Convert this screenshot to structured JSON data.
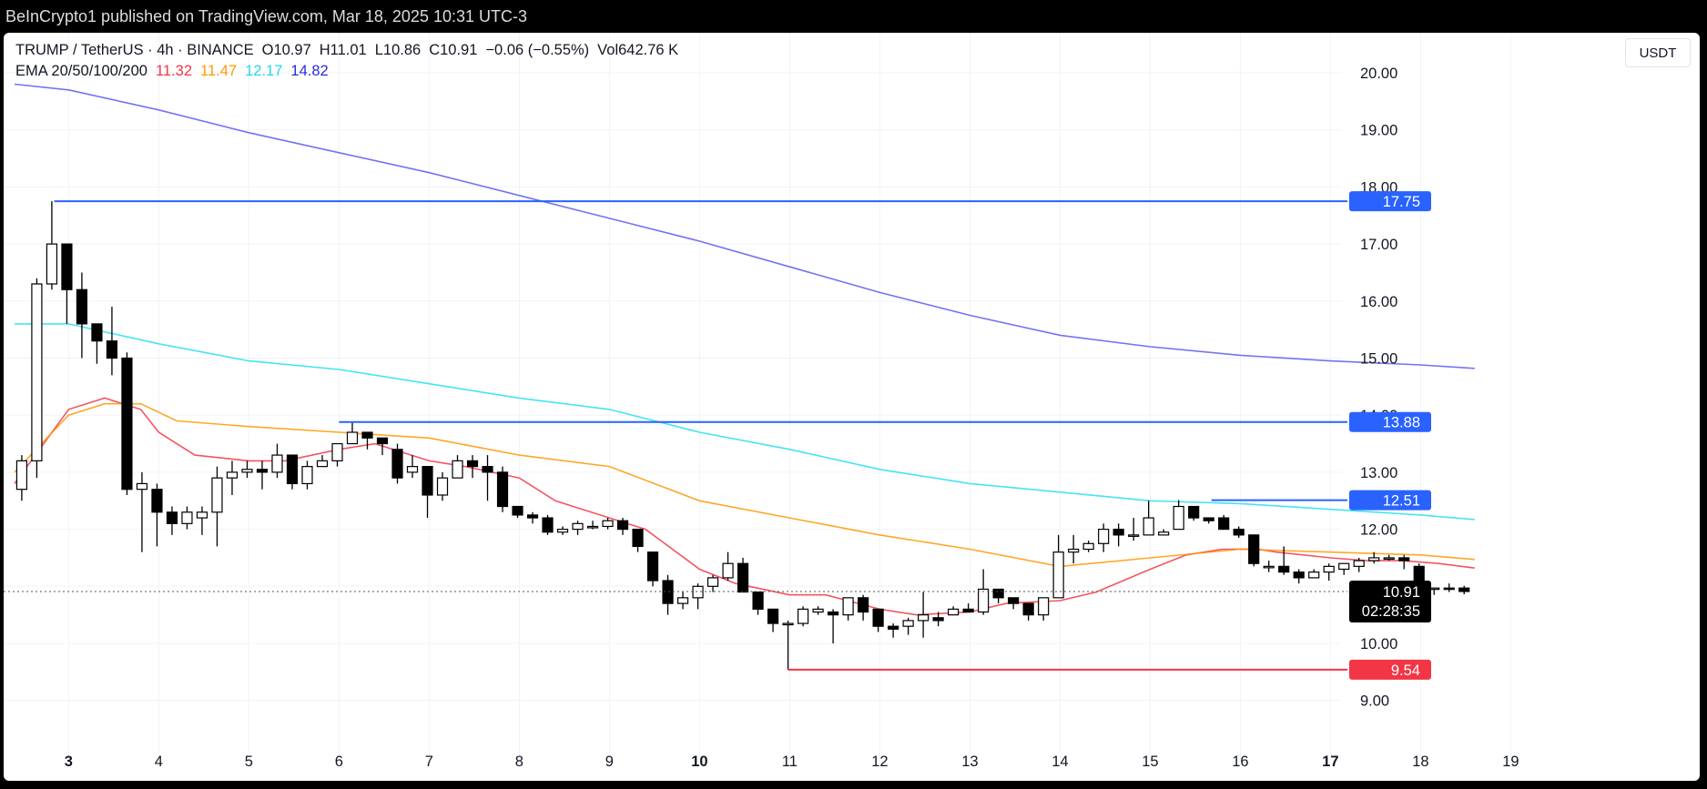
{
  "header": {
    "publisher_line": "BeInCrypto1 published on TradingView.com, Mar 18, 2025 10:31 UTC-3"
  },
  "legend": {
    "symbol_line": "TRUMP / TetherUS · 4h · BINANCE",
    "open": "O10.97",
    "high": "H11.01",
    "low": "L10.86",
    "close": "C10.91",
    "change": "−0.06 (−0.55%)",
    "volume": "Vol642.76 K",
    "ema_title": "EMA 20/50/100/200",
    "ema_values": [
      {
        "text": "11.32",
        "color": "#f23645"
      },
      {
        "text": "11.47",
        "color": "#ff9800"
      },
      {
        "text": "12.17",
        "color": "#22e0f0"
      },
      {
        "text": "14.82",
        "color": "#2a2ae0"
      }
    ]
  },
  "currency_button": "USDT",
  "price_badge": {
    "price": "10.91",
    "countdown": "02:28:35"
  },
  "chart_data": {
    "type": "candlestick",
    "timeframe": "4h",
    "ylim": [
      8.6,
      20.6
    ],
    "y_ticks": [
      "9.00",
      "10.00",
      "11.00",
      "12.00",
      "13.00",
      "14.00",
      "15.00",
      "16.00",
      "17.00",
      "18.00",
      "19.00",
      "20.00"
    ],
    "x_ticks": [
      {
        "label": "3",
        "bold": true,
        "x": 2.6
      },
      {
        "label": "4",
        "bold": false,
        "x": 3.6
      },
      {
        "label": "5",
        "bold": false,
        "x": 4.6
      },
      {
        "label": "6",
        "bold": false,
        "x": 5.6
      },
      {
        "label": "7",
        "bold": false,
        "x": 6.6
      },
      {
        "label": "8",
        "bold": false,
        "x": 7.6
      },
      {
        "label": "9",
        "bold": false,
        "x": 8.6
      },
      {
        "label": "10",
        "bold": true,
        "x": 9.6
      },
      {
        "label": "11",
        "bold": false,
        "x": 10.6
      },
      {
        "label": "12",
        "bold": false,
        "x": 11.6
      },
      {
        "label": "13",
        "bold": false,
        "x": 12.6
      },
      {
        "label": "14",
        "bold": false,
        "x": 13.6
      },
      {
        "label": "15",
        "bold": false,
        "x": 14.6
      },
      {
        "label": "16",
        "bold": false,
        "x": 15.6
      },
      {
        "label": "17",
        "bold": true,
        "x": 16.6
      },
      {
        "label": "18",
        "bold": false,
        "x": 17.6
      },
      {
        "label": "19",
        "bold": false,
        "x": 18.6
      }
    ],
    "xlim": [
      2.0,
      19.95
    ],
    "candle_start_x": 2.08,
    "candle_step": 0.1667,
    "candles": [
      [
        12.7,
        13.2,
        12.5,
        13.3
      ],
      [
        13.2,
        16.3,
        12.9,
        16.4
      ],
      [
        16.3,
        17.0,
        16.2,
        17.75
      ],
      [
        17.0,
        16.2,
        15.6,
        17.0
      ],
      [
        16.2,
        15.6,
        15.0,
        16.5
      ],
      [
        15.6,
        15.3,
        14.9,
        15.6
      ],
      [
        15.3,
        15.0,
        14.7,
        15.9
      ],
      [
        15.0,
        12.7,
        12.6,
        15.1
      ],
      [
        12.7,
        12.8,
        11.6,
        13.0
      ],
      [
        12.7,
        12.3,
        11.7,
        12.8
      ],
      [
        12.3,
        12.1,
        11.9,
        12.4
      ],
      [
        12.1,
        12.3,
        12.0,
        12.4
      ],
      [
        12.2,
        12.3,
        11.9,
        12.4
      ],
      [
        12.3,
        12.9,
        11.7,
        13.1
      ],
      [
        12.9,
        13.0,
        12.6,
        13.2
      ],
      [
        13.0,
        13.05,
        12.9,
        13.2
      ],
      [
        13.05,
        13.0,
        12.7,
        13.2
      ],
      [
        13.0,
        13.3,
        12.9,
        13.5
      ],
      [
        13.3,
        12.8,
        12.7,
        13.3
      ],
      [
        12.8,
        13.1,
        12.7,
        13.2
      ],
      [
        13.1,
        13.2,
        13.1,
        13.3
      ],
      [
        13.2,
        13.5,
        13.1,
        13.5
      ],
      [
        13.5,
        13.7,
        13.5,
        13.88
      ],
      [
        13.7,
        13.6,
        13.4,
        13.7
      ],
      [
        13.6,
        13.5,
        13.3,
        13.6
      ],
      [
        13.4,
        12.9,
        12.8,
        13.5
      ],
      [
        13.0,
        13.1,
        12.9,
        13.3
      ],
      [
        13.1,
        12.6,
        12.2,
        13.1
      ],
      [
        12.6,
        12.9,
        12.5,
        13.0
      ],
      [
        12.9,
        13.2,
        12.9,
        13.3
      ],
      [
        13.2,
        13.1,
        12.9,
        13.3
      ],
      [
        13.1,
        13.0,
        12.5,
        13.3
      ],
      [
        13.0,
        12.4,
        12.3,
        13.1
      ],
      [
        12.4,
        12.25,
        12.2,
        12.4
      ],
      [
        12.25,
        12.2,
        12.1,
        12.3
      ],
      [
        12.2,
        11.95,
        11.9,
        12.25
      ],
      [
        11.95,
        12.0,
        11.9,
        12.05
      ],
      [
        12.0,
        12.1,
        11.9,
        12.15
      ],
      [
        12.05,
        12.05,
        12.0,
        12.15
      ],
      [
        12.05,
        12.15,
        12.0,
        12.2
      ],
      [
        12.15,
        12.0,
        11.9,
        12.2
      ],
      [
        12.0,
        11.7,
        11.6,
        12.0
      ],
      [
        11.6,
        11.1,
        11.0,
        11.6
      ],
      [
        11.1,
        10.7,
        10.5,
        11.2
      ],
      [
        10.7,
        10.8,
        10.6,
        10.9
      ],
      [
        10.8,
        11.0,
        10.6,
        11.05
      ],
      [
        11.0,
        11.15,
        10.9,
        11.2
      ],
      [
        11.15,
        11.4,
        11.1,
        11.6
      ],
      [
        11.4,
        10.9,
        10.9,
        11.5
      ],
      [
        10.9,
        10.6,
        10.5,
        10.9
      ],
      [
        10.6,
        10.35,
        10.2,
        10.6
      ],
      [
        10.35,
        10.35,
        9.54,
        10.4
      ],
      [
        10.35,
        10.6,
        10.3,
        10.65
      ],
      [
        10.55,
        10.6,
        10.5,
        10.65
      ],
      [
        10.55,
        10.5,
        10.0,
        10.6
      ],
      [
        10.5,
        10.8,
        10.4,
        10.8
      ],
      [
        10.8,
        10.55,
        10.4,
        10.85
      ],
      [
        10.6,
        10.3,
        10.2,
        10.6
      ],
      [
        10.3,
        10.25,
        10.1,
        10.35
      ],
      [
        10.3,
        10.4,
        10.15,
        10.45
      ],
      [
        10.4,
        10.5,
        10.1,
        10.9
      ],
      [
        10.45,
        10.4,
        10.3,
        10.55
      ],
      [
        10.5,
        10.6,
        10.5,
        10.65
      ],
      [
        10.6,
        10.55,
        10.55,
        10.7
      ],
      [
        10.55,
        10.95,
        10.5,
        11.3
      ],
      [
        10.95,
        10.8,
        10.7,
        10.95
      ],
      [
        10.8,
        10.7,
        10.6,
        10.75
      ],
      [
        10.7,
        10.5,
        10.4,
        10.7
      ],
      [
        10.5,
        10.8,
        10.4,
        10.8
      ],
      [
        10.8,
        11.6,
        10.8,
        11.9
      ],
      [
        11.6,
        11.65,
        11.4,
        11.9
      ],
      [
        11.65,
        11.75,
        11.6,
        11.8
      ],
      [
        11.75,
        12.0,
        11.6,
        12.1
      ],
      [
        12.0,
        11.9,
        11.7,
        12.1
      ],
      [
        11.9,
        11.9,
        11.8,
        12.2
      ],
      [
        11.9,
        12.2,
        11.9,
        12.5
      ],
      [
        11.9,
        11.95,
        11.9,
        12.0
      ],
      [
        12.0,
        12.4,
        12.0,
        12.51
      ],
      [
        12.4,
        12.2,
        12.15,
        12.4
      ],
      [
        12.2,
        12.15,
        12.1,
        12.2
      ],
      [
        12.2,
        12.0,
        12.0,
        12.25
      ],
      [
        12.0,
        11.9,
        11.85,
        12.05
      ],
      [
        11.9,
        11.4,
        11.35,
        11.9
      ],
      [
        11.35,
        11.35,
        11.25,
        11.45
      ],
      [
        11.35,
        11.25,
        11.2,
        11.7
      ],
      [
        11.25,
        11.15,
        11.05,
        11.3
      ],
      [
        11.15,
        11.25,
        11.15,
        11.3
      ],
      [
        11.25,
        11.35,
        11.1,
        11.4
      ],
      [
        11.3,
        11.4,
        11.2,
        11.4
      ],
      [
        11.35,
        11.45,
        11.25,
        11.5
      ],
      [
        11.45,
        11.5,
        11.4,
        11.6
      ],
      [
        11.5,
        11.5,
        11.45,
        11.55
      ],
      [
        11.5,
        11.45,
        11.3,
        11.55
      ],
      [
        11.35,
        10.95,
        10.9,
        11.4
      ],
      [
        10.95,
        10.97,
        10.85,
        10.98
      ],
      [
        10.97,
        10.95,
        10.9,
        11.05
      ],
      [
        10.97,
        10.91,
        10.86,
        11.01
      ]
    ],
    "ema_series": [
      {
        "name": "EMA 20",
        "color": "#f23645",
        "value": 11.32,
        "points": [
          [
            2.0,
            12.8
          ],
          [
            2.6,
            14.1
          ],
          [
            3.0,
            14.3
          ],
          [
            3.4,
            14.1
          ],
          [
            3.6,
            13.7
          ],
          [
            4.0,
            13.3
          ],
          [
            4.6,
            13.2
          ],
          [
            5.0,
            13.2
          ],
          [
            5.6,
            13.4
          ],
          [
            6.0,
            13.5
          ],
          [
            6.6,
            13.2
          ],
          [
            7.0,
            13.1
          ],
          [
            7.6,
            12.9
          ],
          [
            8.0,
            12.5
          ],
          [
            8.6,
            12.2
          ],
          [
            9.0,
            12.0
          ],
          [
            9.6,
            11.3
          ],
          [
            10.0,
            11.05
          ],
          [
            10.6,
            10.85
          ],
          [
            11.0,
            10.85
          ],
          [
            11.6,
            10.6
          ],
          [
            12.0,
            10.5
          ],
          [
            12.6,
            10.55
          ],
          [
            13.0,
            10.7
          ],
          [
            13.6,
            10.75
          ],
          [
            14.0,
            10.9
          ],
          [
            14.6,
            11.3
          ],
          [
            15.0,
            11.55
          ],
          [
            15.4,
            11.65
          ],
          [
            15.8,
            11.65
          ],
          [
            16.0,
            11.6
          ],
          [
            16.6,
            11.5
          ],
          [
            17.0,
            11.45
          ],
          [
            17.4,
            11.45
          ],
          [
            17.8,
            11.4
          ],
          [
            18.2,
            11.32
          ]
        ]
      },
      {
        "name": "EMA 50",
        "color": "#ff9800",
        "value": 11.47,
        "points": [
          [
            2.0,
            13.0
          ],
          [
            2.6,
            14.0
          ],
          [
            3.0,
            14.2
          ],
          [
            3.4,
            14.2
          ],
          [
            3.8,
            13.9
          ],
          [
            4.6,
            13.8
          ],
          [
            5.6,
            13.7
          ],
          [
            6.6,
            13.6
          ],
          [
            7.6,
            13.3
          ],
          [
            8.6,
            13.1
          ],
          [
            9.6,
            12.5
          ],
          [
            10.6,
            12.2
          ],
          [
            11.6,
            11.9
          ],
          [
            12.6,
            11.65
          ],
          [
            13.6,
            11.35
          ],
          [
            14.6,
            11.5
          ],
          [
            15.6,
            11.65
          ],
          [
            16.6,
            11.6
          ],
          [
            17.6,
            11.55
          ],
          [
            18.2,
            11.47
          ]
        ]
      },
      {
        "name": "EMA 100",
        "color": "#22e0f0",
        "value": 12.17,
        "points": [
          [
            2.0,
            15.6
          ],
          [
            2.6,
            15.6
          ],
          [
            3.6,
            15.25
          ],
          [
            4.6,
            14.95
          ],
          [
            5.6,
            14.8
          ],
          [
            6.6,
            14.55
          ],
          [
            7.6,
            14.3
          ],
          [
            8.6,
            14.1
          ],
          [
            9.6,
            13.7
          ],
          [
            10.6,
            13.4
          ],
          [
            11.6,
            13.05
          ],
          [
            12.6,
            12.8
          ],
          [
            13.6,
            12.65
          ],
          [
            14.6,
            12.5
          ],
          [
            15.6,
            12.45
          ],
          [
            16.6,
            12.35
          ],
          [
            17.6,
            12.25
          ],
          [
            18.2,
            12.17
          ]
        ]
      },
      {
        "name": "EMA 200",
        "color": "#5b5bee",
        "value": 14.82,
        "points": [
          [
            2.0,
            19.8
          ],
          [
            2.6,
            19.7
          ],
          [
            3.6,
            19.35
          ],
          [
            4.6,
            18.95
          ],
          [
            5.6,
            18.6
          ],
          [
            6.6,
            18.25
          ],
          [
            7.6,
            17.85
          ],
          [
            8.6,
            17.45
          ],
          [
            9.6,
            17.05
          ],
          [
            10.6,
            16.6
          ],
          [
            11.6,
            16.15
          ],
          [
            12.6,
            15.75
          ],
          [
            13.6,
            15.4
          ],
          [
            14.6,
            15.2
          ],
          [
            15.6,
            15.05
          ],
          [
            16.6,
            14.95
          ],
          [
            17.6,
            14.88
          ],
          [
            18.2,
            14.82
          ]
        ]
      }
    ],
    "levels": [
      {
        "label": "17.75",
        "value": 17.75,
        "x_start": 2.44,
        "color": "#2962ff"
      },
      {
        "label": "13.88",
        "value": 13.88,
        "x_start": 5.6,
        "color": "#2962ff"
      },
      {
        "label": "12.51",
        "value": 12.51,
        "x_start": 15.28,
        "color": "#2962ff"
      },
      {
        "label": "9.54",
        "value": 9.54,
        "x_start": 10.58,
        "color": "#f23645"
      }
    ],
    "last_price": 10.91
  }
}
